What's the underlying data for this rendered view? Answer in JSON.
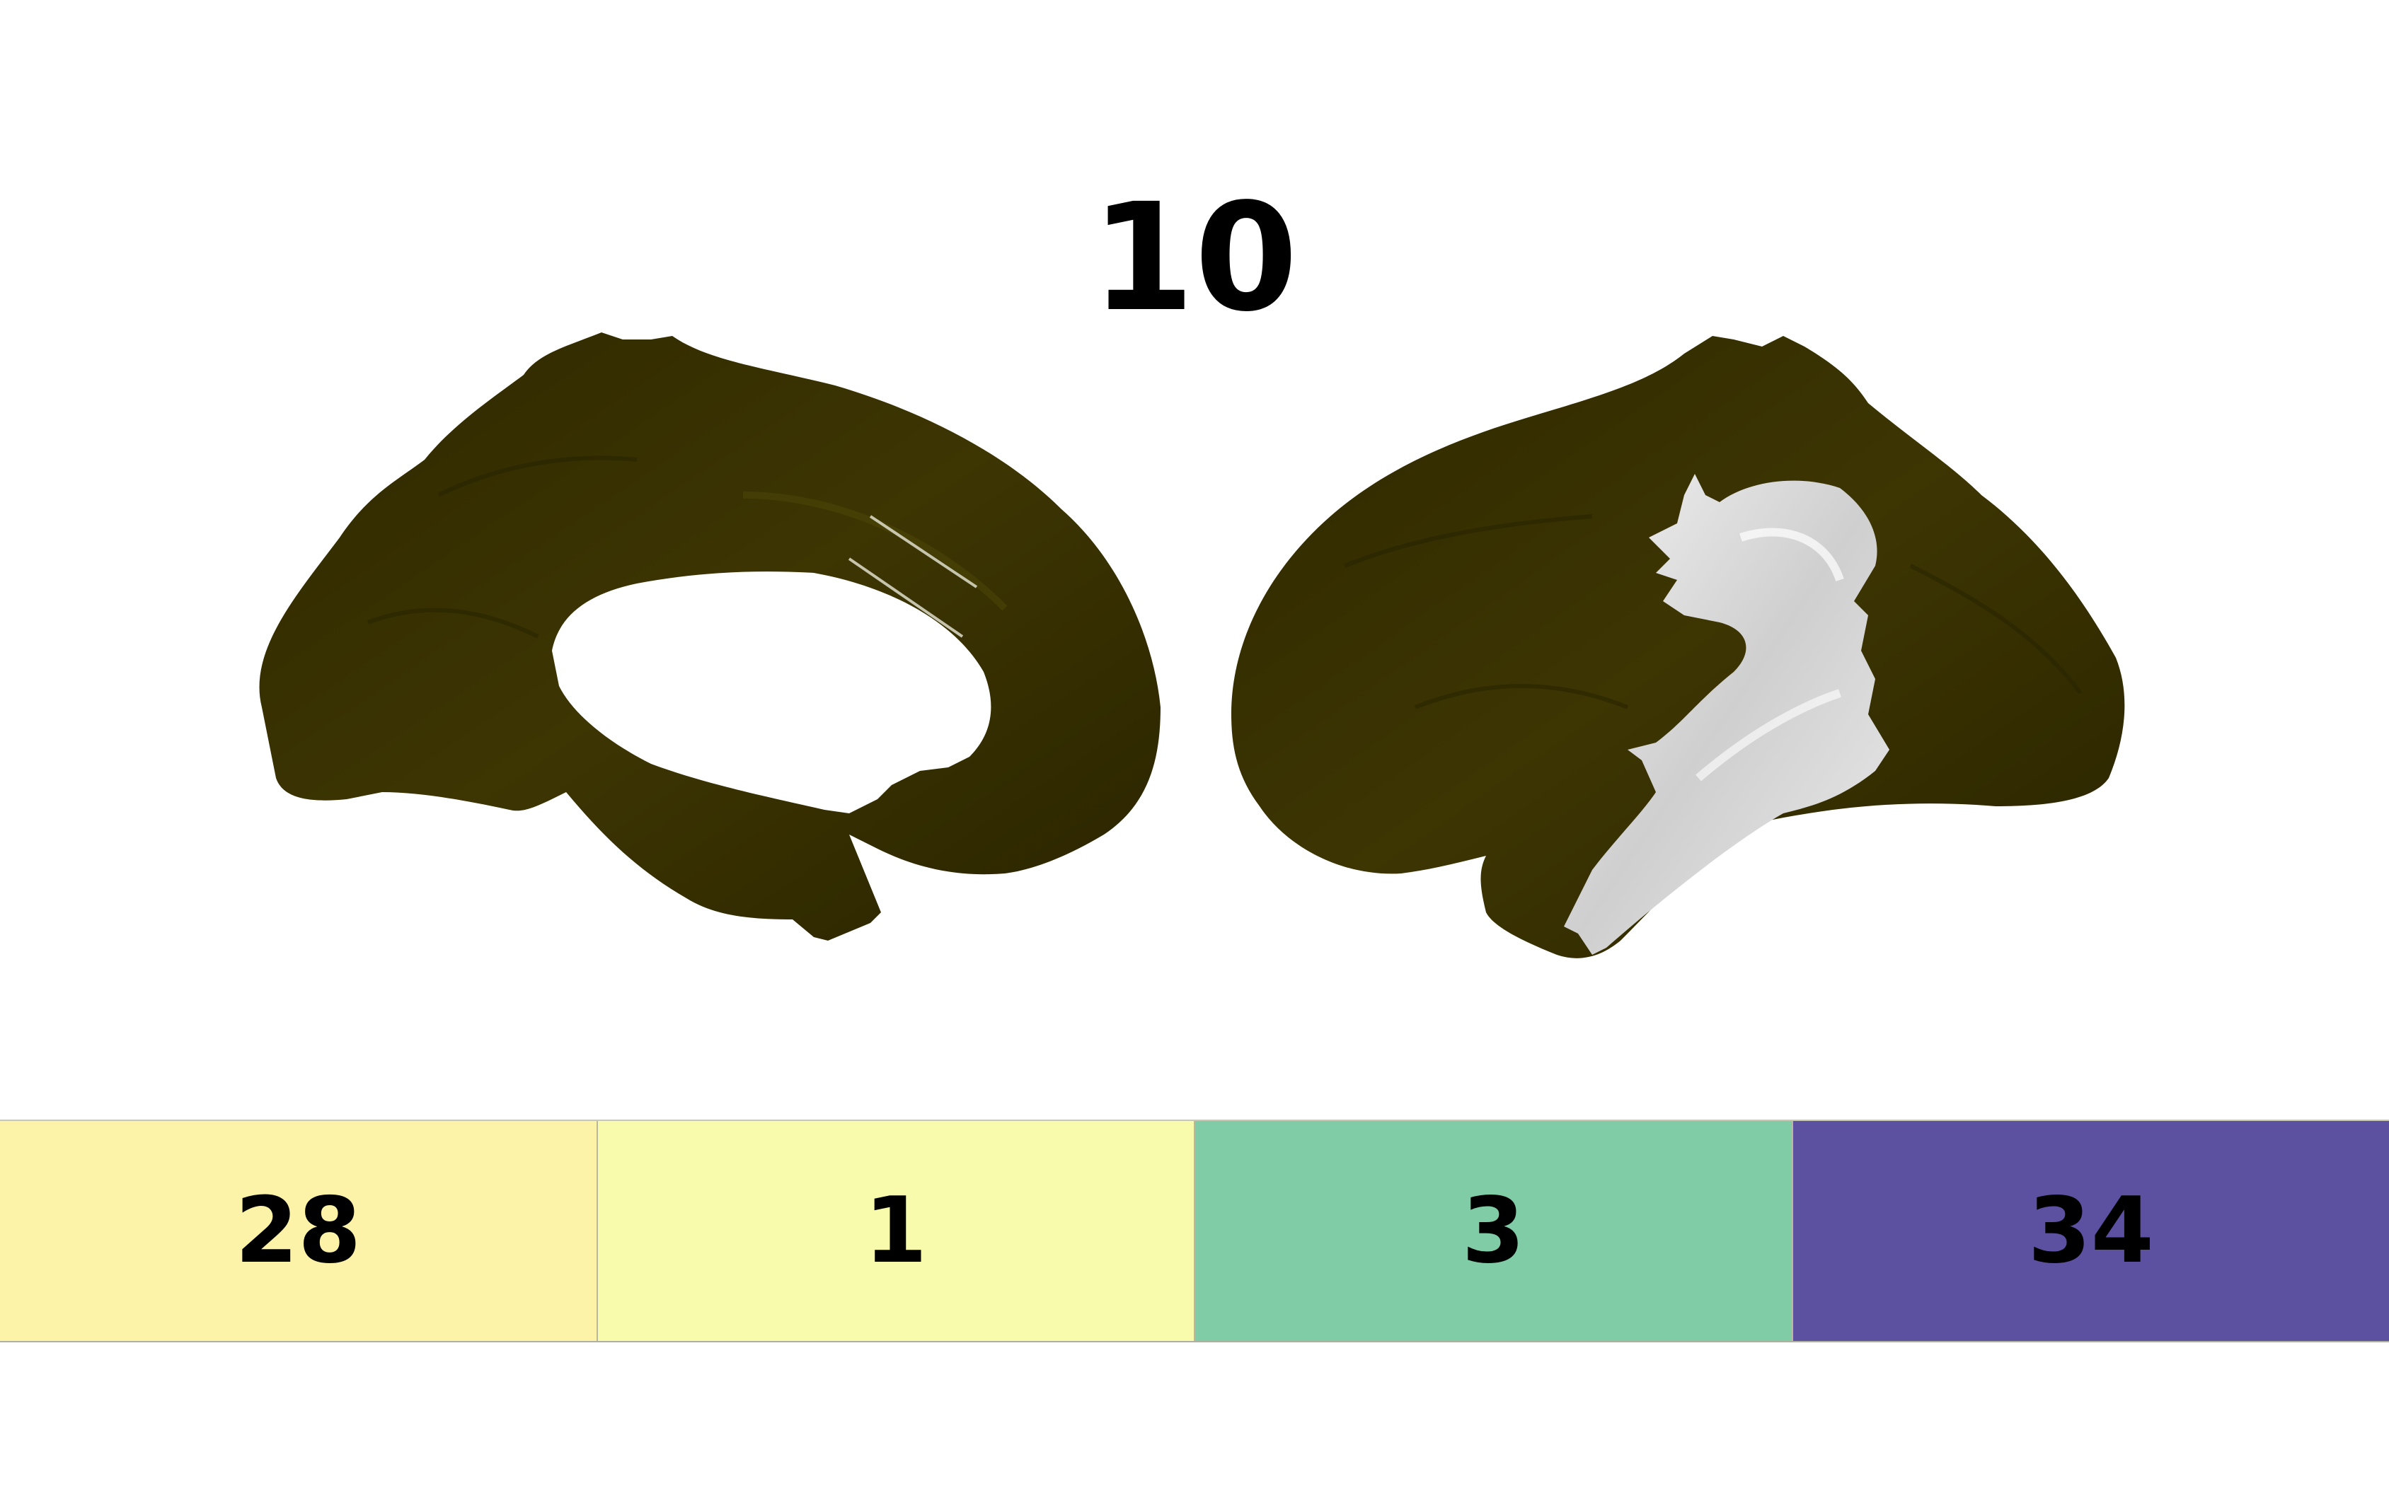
{
  "title": "10",
  "colors": {
    "cortex": "#3a3300",
    "cortex_highlight": "#4a4308",
    "region": "#d8d8d8",
    "background": "#ffffff"
  },
  "legend": [
    {
      "label": "28",
      "color": "#fcf3a9"
    },
    {
      "label": "1",
      "color": "#f7fbab"
    },
    {
      "label": "3",
      "color": "#80cca6"
    },
    {
      "label": "34",
      "color": "#5c50a0"
    }
  ]
}
